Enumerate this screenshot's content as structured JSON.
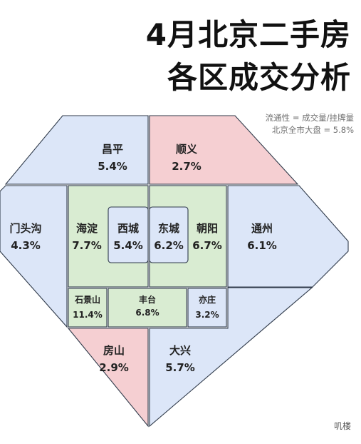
{
  "title": {
    "line1": "4月北京二手房",
    "line2": "各区成交分析"
  },
  "note": {
    "line1": "流通性 = 成交量/挂牌量",
    "line2": "北京全市大盘 = 5.8%"
  },
  "colors": {
    "blue": "#dce6f8",
    "pink": "#f5cfd2",
    "green": "#d9ecd2",
    "stroke": "#2f3a4a"
  },
  "districts": [
    {
      "name": "昌平",
      "rate": "5.4%"
    },
    {
      "name": "顺义",
      "rate": "2.7%"
    },
    {
      "name": "门头沟",
      "rate": "4.3%"
    },
    {
      "name": "海淀",
      "rate": "7.7%"
    },
    {
      "name": "西城",
      "rate": "5.4%"
    },
    {
      "name": "东城",
      "rate": "6.2%"
    },
    {
      "name": "朝阳",
      "rate": "6.7%"
    },
    {
      "name": "通州",
      "rate": "6.1%"
    },
    {
      "name": "石景山",
      "rate": "11.4%"
    },
    {
      "name": "丰台",
      "rate": "6.8%"
    },
    {
      "name": "亦庄",
      "rate": "3.2%"
    },
    {
      "name": "房山",
      "rate": "2.9%"
    },
    {
      "name": "大兴",
      "rate": "5.7%"
    }
  ],
  "watermark": "叽楼"
}
